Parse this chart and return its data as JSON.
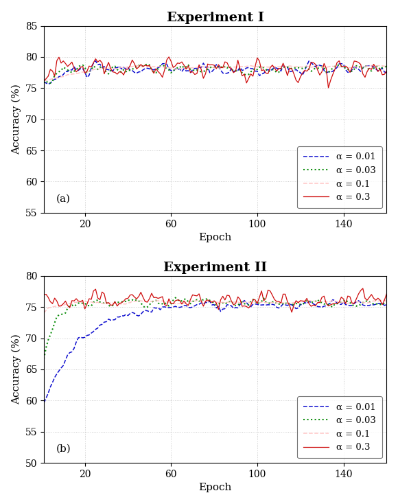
{
  "title1": "Experiment I",
  "title2": "Experiment II",
  "xlabel": "Epoch",
  "ylabel": "Accuracy (%)",
  "label_a": "(a)",
  "label_b": "(b)",
  "legend_labels": [
    "α = 0.01",
    "α = 0.03",
    "α = 0.1",
    "α = 0.3"
  ],
  "colors": [
    "#0000cc",
    "#008800",
    "#ffbbbb",
    "#cc0000"
  ],
  "ylim1": [
    55,
    85
  ],
  "ylim2": [
    50,
    80
  ],
  "yticks1": [
    55,
    60,
    65,
    70,
    75,
    80,
    85
  ],
  "yticks2": [
    50,
    55,
    60,
    65,
    70,
    75,
    80
  ],
  "xlim": [
    1,
    160
  ],
  "xticks": [
    20,
    60,
    100,
    140
  ],
  "n_epochs": 160,
  "background_color": "#ffffff",
  "grid_color": "#aaaaaa"
}
